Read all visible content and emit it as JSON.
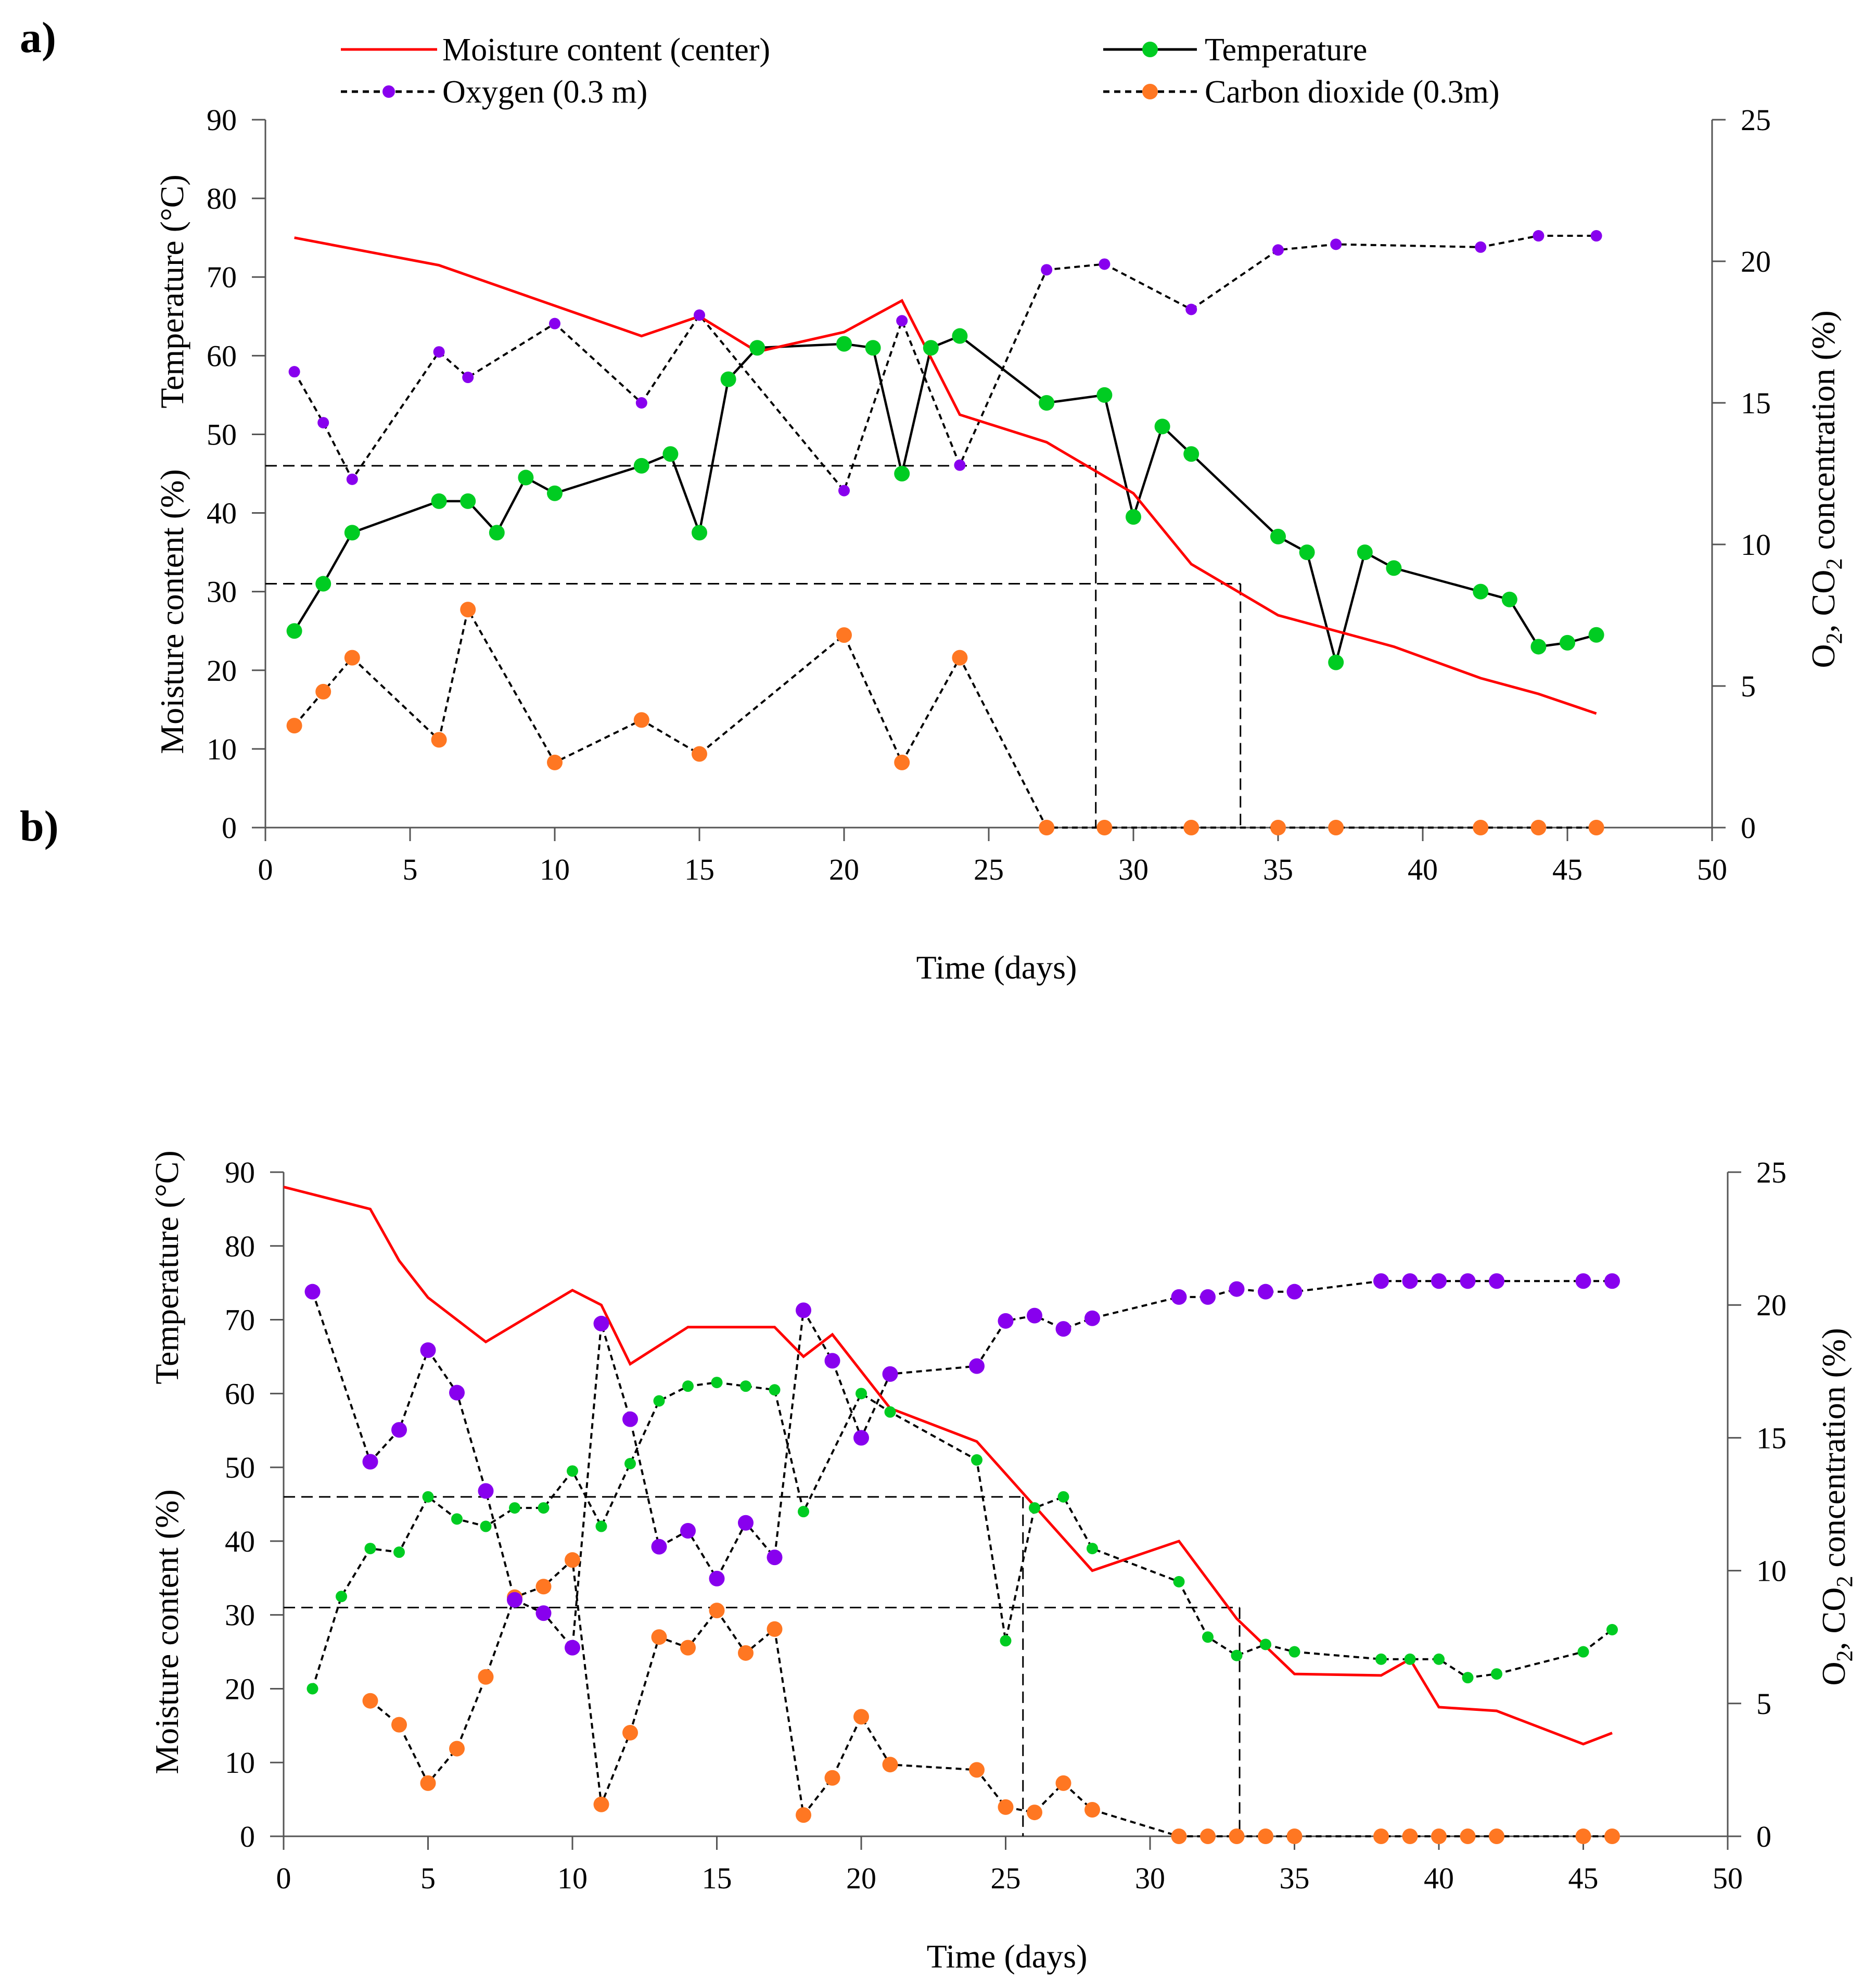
{
  "colors": {
    "moisture": "#ff0000",
    "temperature_marker": "#00cc22",
    "oxygen": "#8800ee",
    "co2": "#ff7722",
    "axis": "#555555",
    "line": "#000000"
  },
  "legend": {
    "moisture": "Moisture content (center)",
    "temperature": "Temperature",
    "oxygen": "Oxygen (0.3 m)",
    "co2": "Carbon dioxide (0.3m)"
  },
  "chart_data": [
    {
      "panel_label": "a)",
      "type": "line",
      "title": "",
      "xlabel": "Time (days)",
      "ylabel_left_top": "Temperature (°C)",
      "ylabel_left_bottom": "Moisture content (%)",
      "ylabel_right": {
        "o": "O",
        "o_sub": "2",
        "sep": ",  CO",
        "c_sub": "2",
        "rest": "  concentration  (%)"
      },
      "xlim": [
        0,
        50
      ],
      "ylim_left": [
        0,
        90
      ],
      "ylim_right": [
        0,
        25
      ],
      "xticks": [
        "0",
        "5",
        "10",
        "15",
        "20",
        "25",
        "30",
        "35",
        "40",
        "45",
        "50"
      ],
      "yticks_left": [
        "0",
        "10",
        "20",
        "30",
        "40",
        "50",
        "60",
        "70",
        "80",
        "90"
      ],
      "yticks_right": [
        "0",
        "5",
        "10",
        "15",
        "20",
        "25"
      ],
      "guides": [
        {
          "y": 46,
          "x": 28.7
        },
        {
          "y": 31,
          "x": 33.7
        }
      ],
      "series": {
        "moisture": {
          "x": [
            1,
            6,
            13,
            15,
            17,
            20,
            22,
            24,
            27,
            30,
            32,
            35,
            39,
            42,
            44,
            46
          ],
          "y": [
            75,
            71.5,
            62.5,
            65,
            60.5,
            63,
            67,
            52.5,
            49,
            42.5,
            33.5,
            27,
            23,
            19,
            17,
            14.5
          ]
        },
        "temperature": {
          "x": [
            1,
            2,
            3,
            6,
            7,
            8,
            9,
            10,
            13,
            14,
            15,
            16,
            17,
            20,
            21,
            22,
            23,
            24,
            27,
            29,
            30,
            31,
            32,
            35,
            36,
            37,
            38,
            39,
            42,
            43,
            44,
            45,
            46
          ],
          "y": [
            25,
            31,
            37.5,
            41.5,
            41.5,
            37.5,
            44.5,
            42.5,
            46,
            47.5,
            37.5,
            57,
            61,
            61.5,
            61,
            45,
            61,
            62.5,
            54,
            55,
            39.5,
            51,
            47.5,
            37,
            35,
            21,
            35,
            33,
            30,
            29,
            23,
            23.5,
            24.5
          ]
        },
        "oxygen": {
          "x": [
            1,
            2,
            3,
            6,
            7,
            10,
            13,
            15,
            20,
            22,
            24,
            27,
            29,
            32,
            35,
            37,
            42,
            44,
            46
          ],
          "y": [
            16.1,
            14.3,
            12.3,
            16.8,
            15.9,
            17.8,
            15,
            18.1,
            11.9,
            17.9,
            12.8,
            19.7,
            19.9,
            18.3,
            20.4,
            20.6,
            20.5,
            20.9,
            20.9
          ]
        },
        "co2": {
          "x": [
            1,
            2,
            3,
            6,
            7,
            10,
            13,
            15,
            20,
            22,
            24,
            27,
            29,
            32,
            35,
            37,
            42,
            44,
            46
          ],
          "y": [
            3.6,
            4.8,
            6,
            3.1,
            7.7,
            2.3,
            3.8,
            2.6,
            6.8,
            2.3,
            6,
            0,
            0,
            0,
            0,
            0,
            0,
            0,
            0
          ]
        }
      }
    },
    {
      "panel_label": "b)",
      "type": "line",
      "title": "",
      "xlabel": "Time (days)",
      "ylabel_left_top": "Temperature (°C)",
      "ylabel_left_bottom": "Moisture content (%)",
      "ylabel_right": {
        "o": "O",
        "o_sub": "2",
        "sep": ", CO",
        "c_sub": "2",
        "rest": " concentration (%)"
      },
      "xlim": [
        0,
        50
      ],
      "ylim_left": [
        0,
        90
      ],
      "ylim_right": [
        0,
        25
      ],
      "xticks": [
        "0",
        "5",
        "10",
        "15",
        "20",
        "25",
        "30",
        "35",
        "40",
        "45",
        "50"
      ],
      "yticks_left": [
        "0",
        "10",
        "20",
        "30",
        "40",
        "50",
        "60",
        "70",
        "80",
        "90"
      ],
      "yticks_right": [
        "0",
        "5",
        "10",
        "15",
        "20",
        "25"
      ],
      "guides": [
        {
          "y": 46,
          "x": 25.6
        },
        {
          "y": 31,
          "x": 33.1
        }
      ],
      "series": {
        "moisture": {
          "x": [
            0,
            3,
            4,
            5,
            7,
            10,
            11,
            12,
            14,
            17,
            18,
            19,
            21,
            24,
            28,
            31,
            33,
            35,
            38,
            39,
            40,
            42,
            45,
            46
          ],
          "y": [
            88,
            85,
            78,
            73,
            67,
            74,
            72,
            64,
            69,
            69,
            65,
            68,
            58,
            53.5,
            36,
            40,
            29.5,
            22,
            21.8,
            24,
            17.5,
            17,
            12.5,
            14
          ]
        },
        "temperature": {
          "x": [
            1,
            2,
            3,
            4,
            5,
            6,
            7,
            8,
            9,
            10,
            11,
            12,
            13,
            14,
            15,
            16,
            17,
            18,
            20,
            21,
            24,
            25,
            26,
            27,
            28,
            31,
            32,
            33,
            34,
            35,
            38,
            39,
            40,
            41,
            42,
            45,
            46
          ],
          "y": [
            20,
            32.5,
            39,
            38.5,
            46,
            43,
            42,
            44.5,
            44.5,
            49.5,
            42,
            50.5,
            59,
            61,
            61.5,
            61,
            60.5,
            44,
            60,
            57.5,
            51,
            26.5,
            44.5,
            46,
            39,
            34.5,
            27,
            24.5,
            26,
            25,
            24,
            24,
            24,
            21.5,
            22,
            25,
            28
          ]
        },
        "oxygen": {
          "x": [
            1,
            3,
            4,
            5,
            6,
            7,
            8,
            9,
            10,
            11,
            12,
            13,
            14,
            15,
            16,
            17,
            18,
            19,
            20,
            21,
            24,
            25,
            26,
            27,
            28,
            31,
            32,
            33,
            34,
            35,
            38,
            39,
            40,
            41,
            42,
            45,
            46
          ],
          "y": [
            20.5,
            14.1,
            15.3,
            18.3,
            16.7,
            13,
            8.9,
            8.4,
            7.1,
            19.3,
            15.7,
            10.9,
            11.5,
            9.7,
            11.8,
            10.5,
            19.8,
            17.9,
            15,
            17.4,
            17.7,
            19.4,
            19.6,
            19.1,
            19.5,
            20.3,
            20.3,
            20.6,
            20.5,
            20.5,
            20.9,
            20.9,
            20.9,
            20.9,
            20.9,
            20.9,
            20.9
          ]
        },
        "co2": {
          "x": [
            3,
            4,
            5,
            6,
            7,
            8,
            9,
            10,
            11,
            12,
            13,
            14,
            15,
            16,
            17,
            18,
            19,
            20,
            21,
            24,
            25,
            26,
            27,
            28,
            31,
            32,
            33,
            34,
            35,
            38,
            39,
            40,
            41,
            42,
            45,
            46
          ],
          "y": [
            5.1,
            4.2,
            2,
            3.3,
            6,
            9,
            9.4,
            10.4,
            1.2,
            3.9,
            7.5,
            7.1,
            8.5,
            6.9,
            7.8,
            0.8,
            2.2,
            4.5,
            2.7,
            2.5,
            1.1,
            0.9,
            2,
            1,
            0,
            0,
            0,
            0,
            0,
            0,
            0,
            0,
            0,
            0,
            0,
            0
          ]
        }
      }
    }
  ]
}
